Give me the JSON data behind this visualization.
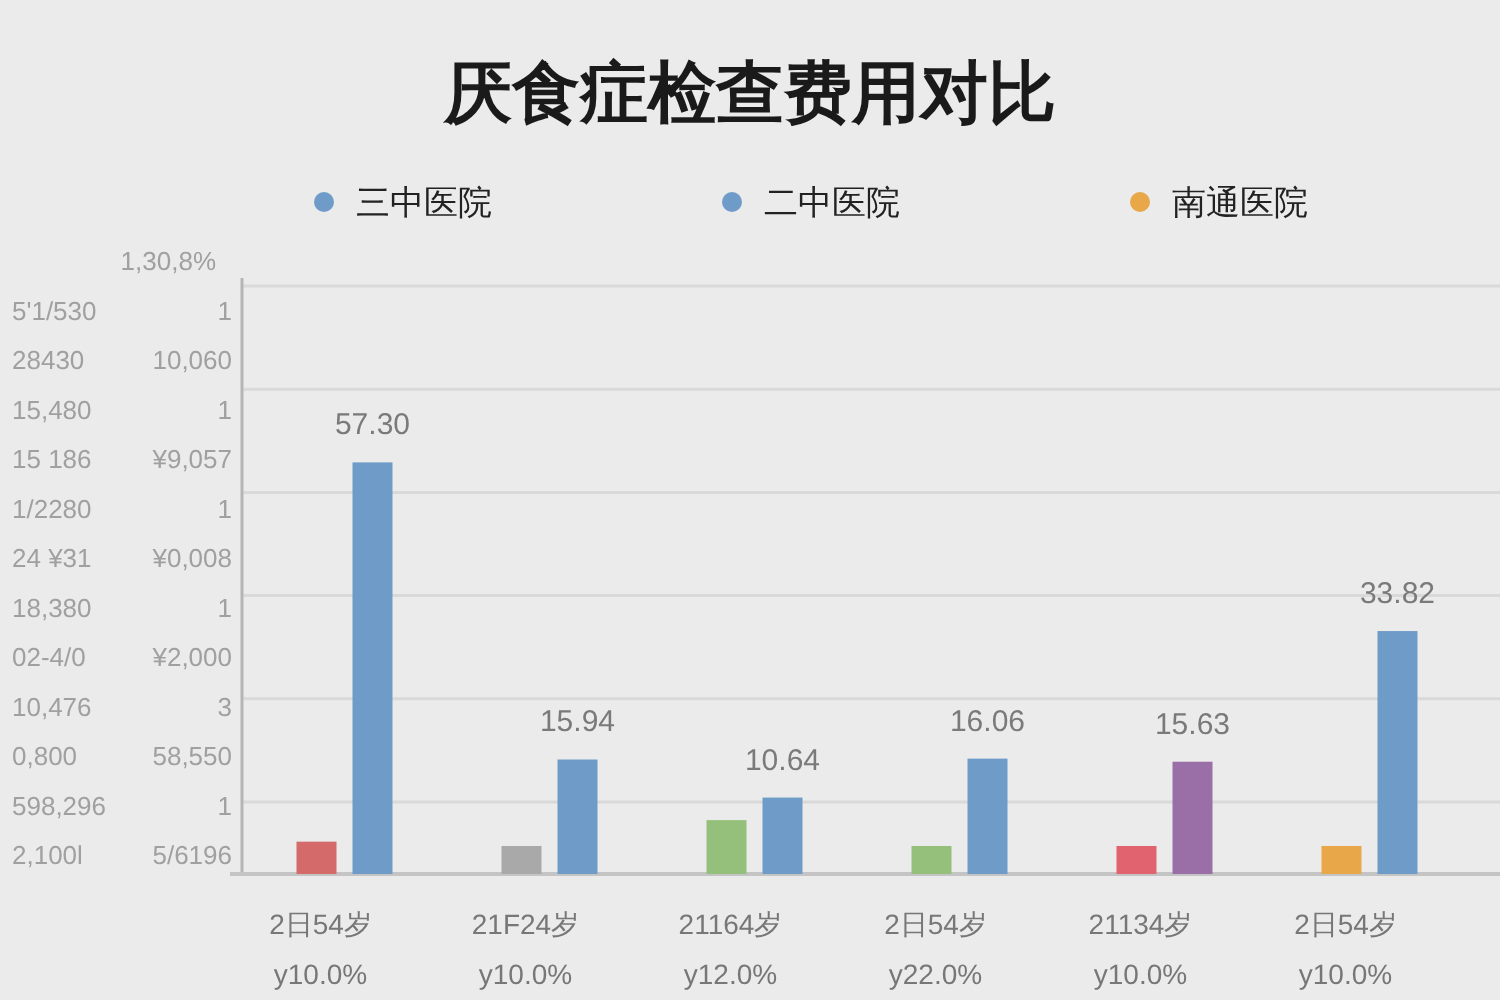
{
  "chart_data": {
    "type": "bar",
    "title": "厌食症检查费用对比",
    "categories": [
      "2日54岁\ny10.0%",
      "21F24岁\ny10.0%",
      "21164岁\ny12.0%",
      "2日54岁\ny22.0%",
      "21134岁\ny10.0%",
      "2日54岁\ny10.0%"
    ],
    "series": [
      {
        "colors": [
          "#d46a6a",
          "#a9a9a9",
          "#95c07c",
          "#95c07c",
          "#e0636f",
          "#e8a84a"
        ],
        "values": [
          4.5,
          3.9,
          7.5,
          3.9,
          3.9,
          3.9
        ]
      },
      {
        "name": "三中医院",
        "color": "#6f9bc8",
        "colors": [
          "#6f9bc8",
          "#6f9bc8",
          "#6f9bc8",
          "#6f9bc8",
          "#9a6ea6",
          "#6f9bc8"
        ],
        "values": [
          57.3,
          15.94,
          10.64,
          16.06,
          15.63,
          33.82
        ],
        "value_labels": [
          "57.30",
          "15.94",
          "10.64",
          "16.06",
          "15.63",
          "33.82"
        ]
      },
      {
        "name": "二中医院",
        "color": "#6f9bc8",
        "values": [
          null,
          null,
          null,
          null,
          null,
          null
        ]
      },
      {
        "name": "南通医院",
        "color": "#e8a84a",
        "values": [
          null,
          null,
          null,
          null,
          null,
          null
        ]
      }
    ],
    "legend": "top",
    "grid": "y",
    "annotations": [
      "1,30,8%",
      "5'1/530  1",
      "28430  10,060",
      "15,480  1",
      "15 186  ¥9,057",
      "1/2280  1",
      "24 ¥31  ¥0,008",
      "18,380  1",
      "02-4/0  ¥2,000",
      "10,476  3",
      "0,800  58,550",
      "598,296  1",
      "2,100l  5/6196"
    ]
  }
}
